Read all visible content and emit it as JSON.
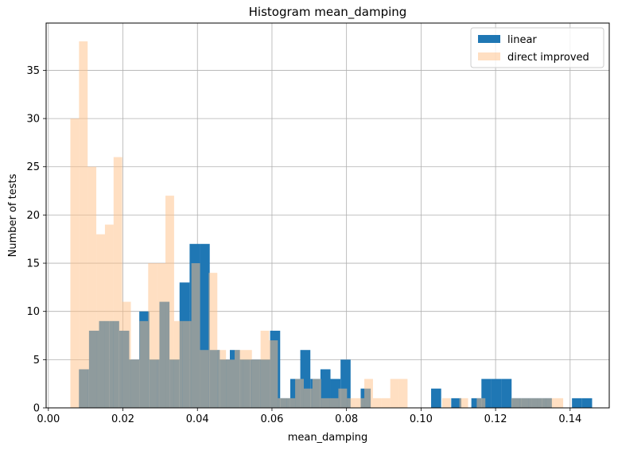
{
  "chart_data": {
    "type": "histogram",
    "title": "Histogram mean_damping",
    "xlabel": "mean_damping",
    "ylabel": "Number of tests",
    "xlim": [
      -0.0006,
      0.1505
    ],
    "ylim": [
      0,
      39.9
    ],
    "xticks": [
      0.0,
      0.02,
      0.04,
      0.06,
      0.08,
      0.1,
      0.12,
      0.14
    ],
    "xtick_labels": [
      "0.00",
      "0.02",
      "0.04",
      "0.06",
      "0.08",
      "0.10",
      "0.12",
      "0.14"
    ],
    "yticks": [
      0,
      5,
      10,
      15,
      20,
      25,
      30,
      35
    ],
    "ytick_labels": [
      "0",
      "5",
      "10",
      "15",
      "20",
      "25",
      "30",
      "35"
    ],
    "grid": true,
    "legend_position": "top-right",
    "series": [
      {
        "name": "linear",
        "color": "#1f77b4",
        "alpha": 1.0,
        "bin_start": 0.0082,
        "bin_width": 0.0027,
        "values": [
          4,
          8,
          9,
          9,
          8,
          5,
          10,
          5,
          11,
          5,
          13,
          17,
          17,
          6,
          5,
          6,
          5,
          5,
          5,
          8,
          1,
          3,
          6,
          3,
          4,
          3,
          5,
          0,
          2,
          0,
          0,
          0,
          0,
          0,
          0,
          2,
          0,
          1,
          0,
          1,
          3,
          3,
          3,
          1,
          1,
          1,
          1,
          0,
          0,
          1,
          1
        ]
      },
      {
        "name": "direct improved",
        "color": "#ffbf86",
        "alpha": 0.5,
        "bin_start": 0.0059,
        "bin_width": 0.00232,
        "values": [
          30,
          38,
          25,
          18,
          19,
          26,
          11,
          5,
          9,
          15,
          15,
          22,
          9,
          9,
          15,
          6,
          14,
          6,
          5,
          6,
          6,
          5,
          8,
          7,
          1,
          1,
          3,
          2,
          3,
          1,
          1,
          2,
          1,
          1,
          3,
          1,
          1,
          3,
          3,
          0,
          0,
          0,
          0,
          1,
          0,
          1,
          0,
          1,
          0,
          0,
          0,
          1,
          1,
          1,
          1,
          1,
          1,
          0,
          0
        ]
      }
    ]
  }
}
